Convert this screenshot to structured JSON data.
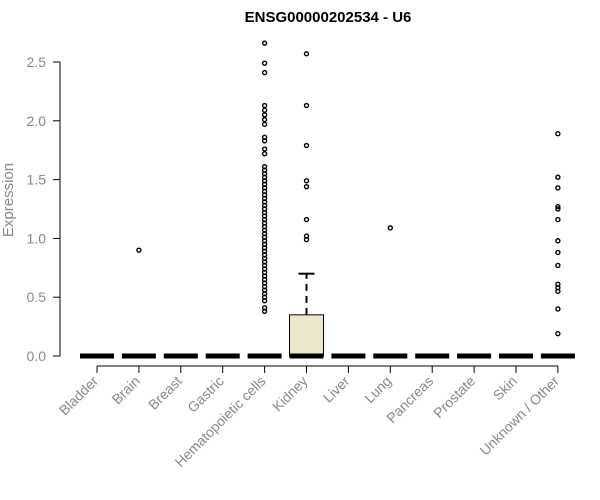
{
  "chart_data": {
    "type": "boxplot",
    "title": "ENSG00000202534 - U6",
    "xlabel": "",
    "ylabel": "Expression",
    "ylim": [
      0,
      2.6
    ],
    "yticks": [
      "0.0",
      "0.5",
      "1.0",
      "1.5",
      "2.0",
      "2.5"
    ],
    "box_fill": "#ece6cb",
    "categories": [
      "Bladder",
      "Brain",
      "Breast",
      "Gastric",
      "Hematopoietic cells",
      "Kidney",
      "Liver",
      "Lung",
      "Pancreas",
      "Prostate",
      "Skin",
      "Unknown / Other"
    ],
    "boxes": [
      {
        "name": "Bladder",
        "q1": 0,
        "median": 0,
        "q3": 0,
        "whisker_low": 0,
        "whisker_high": 0,
        "outliers": []
      },
      {
        "name": "Brain",
        "q1": 0,
        "median": 0,
        "q3": 0,
        "whisker_low": 0,
        "whisker_high": 0,
        "outliers": [
          0.9
        ]
      },
      {
        "name": "Breast",
        "q1": 0,
        "median": 0,
        "q3": 0,
        "whisker_low": 0,
        "whisker_high": 0,
        "outliers": []
      },
      {
        "name": "Gastric",
        "q1": 0,
        "median": 0,
        "q3": 0,
        "whisker_low": 0,
        "whisker_high": 0,
        "outliers": []
      },
      {
        "name": "Hematopoietic cells",
        "q1": 0,
        "median": 0,
        "q3": 0,
        "whisker_low": 0,
        "whisker_high": 0,
        "outliers": [
          2.66,
          2.49,
          2.41,
          2.13,
          2.09,
          2.05,
          2.01,
          1.97,
          1.86,
          1.83,
          1.76,
          1.72,
          1.61,
          1.58,
          1.55,
          1.52,
          1.49,
          1.46,
          1.43,
          1.4,
          1.37,
          1.34,
          1.31,
          1.28,
          1.25,
          1.22,
          1.19,
          1.16,
          1.13,
          1.1,
          1.07,
          1.04,
          1.01,
          0.98,
          0.95,
          0.92,
          0.89,
          0.86,
          0.83,
          0.8,
          0.77,
          0.74,
          0.71,
          0.68,
          0.65,
          0.62,
          0.59,
          0.56,
          0.53,
          0.5,
          0.47,
          0.41,
          0.38
        ]
      },
      {
        "name": "Kidney",
        "q1": 0,
        "median": 0,
        "q3": 0.35,
        "whisker_low": 0,
        "whisker_high": 0.7,
        "outliers": [
          2.57,
          2.13,
          1.79,
          1.49,
          1.44,
          1.16,
          1.02,
          0.99
        ]
      },
      {
        "name": "Liver",
        "q1": 0,
        "median": 0,
        "q3": 0,
        "whisker_low": 0,
        "whisker_high": 0,
        "outliers": []
      },
      {
        "name": "Lung",
        "q1": 0,
        "median": 0,
        "q3": 0,
        "whisker_low": 0,
        "whisker_high": 0,
        "outliers": [
          1.09
        ]
      },
      {
        "name": "Pancreas",
        "q1": 0,
        "median": 0,
        "q3": 0,
        "whisker_low": 0,
        "whisker_high": 0,
        "outliers": []
      },
      {
        "name": "Prostate",
        "q1": 0,
        "median": 0,
        "q3": 0,
        "whisker_low": 0,
        "whisker_high": 0,
        "outliers": []
      },
      {
        "name": "Skin",
        "q1": 0,
        "median": 0,
        "q3": 0,
        "whisker_low": 0,
        "whisker_high": 0,
        "outliers": []
      },
      {
        "name": "Unknown / Other",
        "q1": 0,
        "median": 0,
        "q3": 0,
        "whisker_low": 0,
        "whisker_high": 0,
        "outliers": [
          1.89,
          1.52,
          1.43,
          1.27,
          1.25,
          1.16,
          0.98,
          0.88,
          0.77,
          0.61,
          0.58,
          0.55,
          0.4,
          0.19
        ]
      }
    ]
  }
}
